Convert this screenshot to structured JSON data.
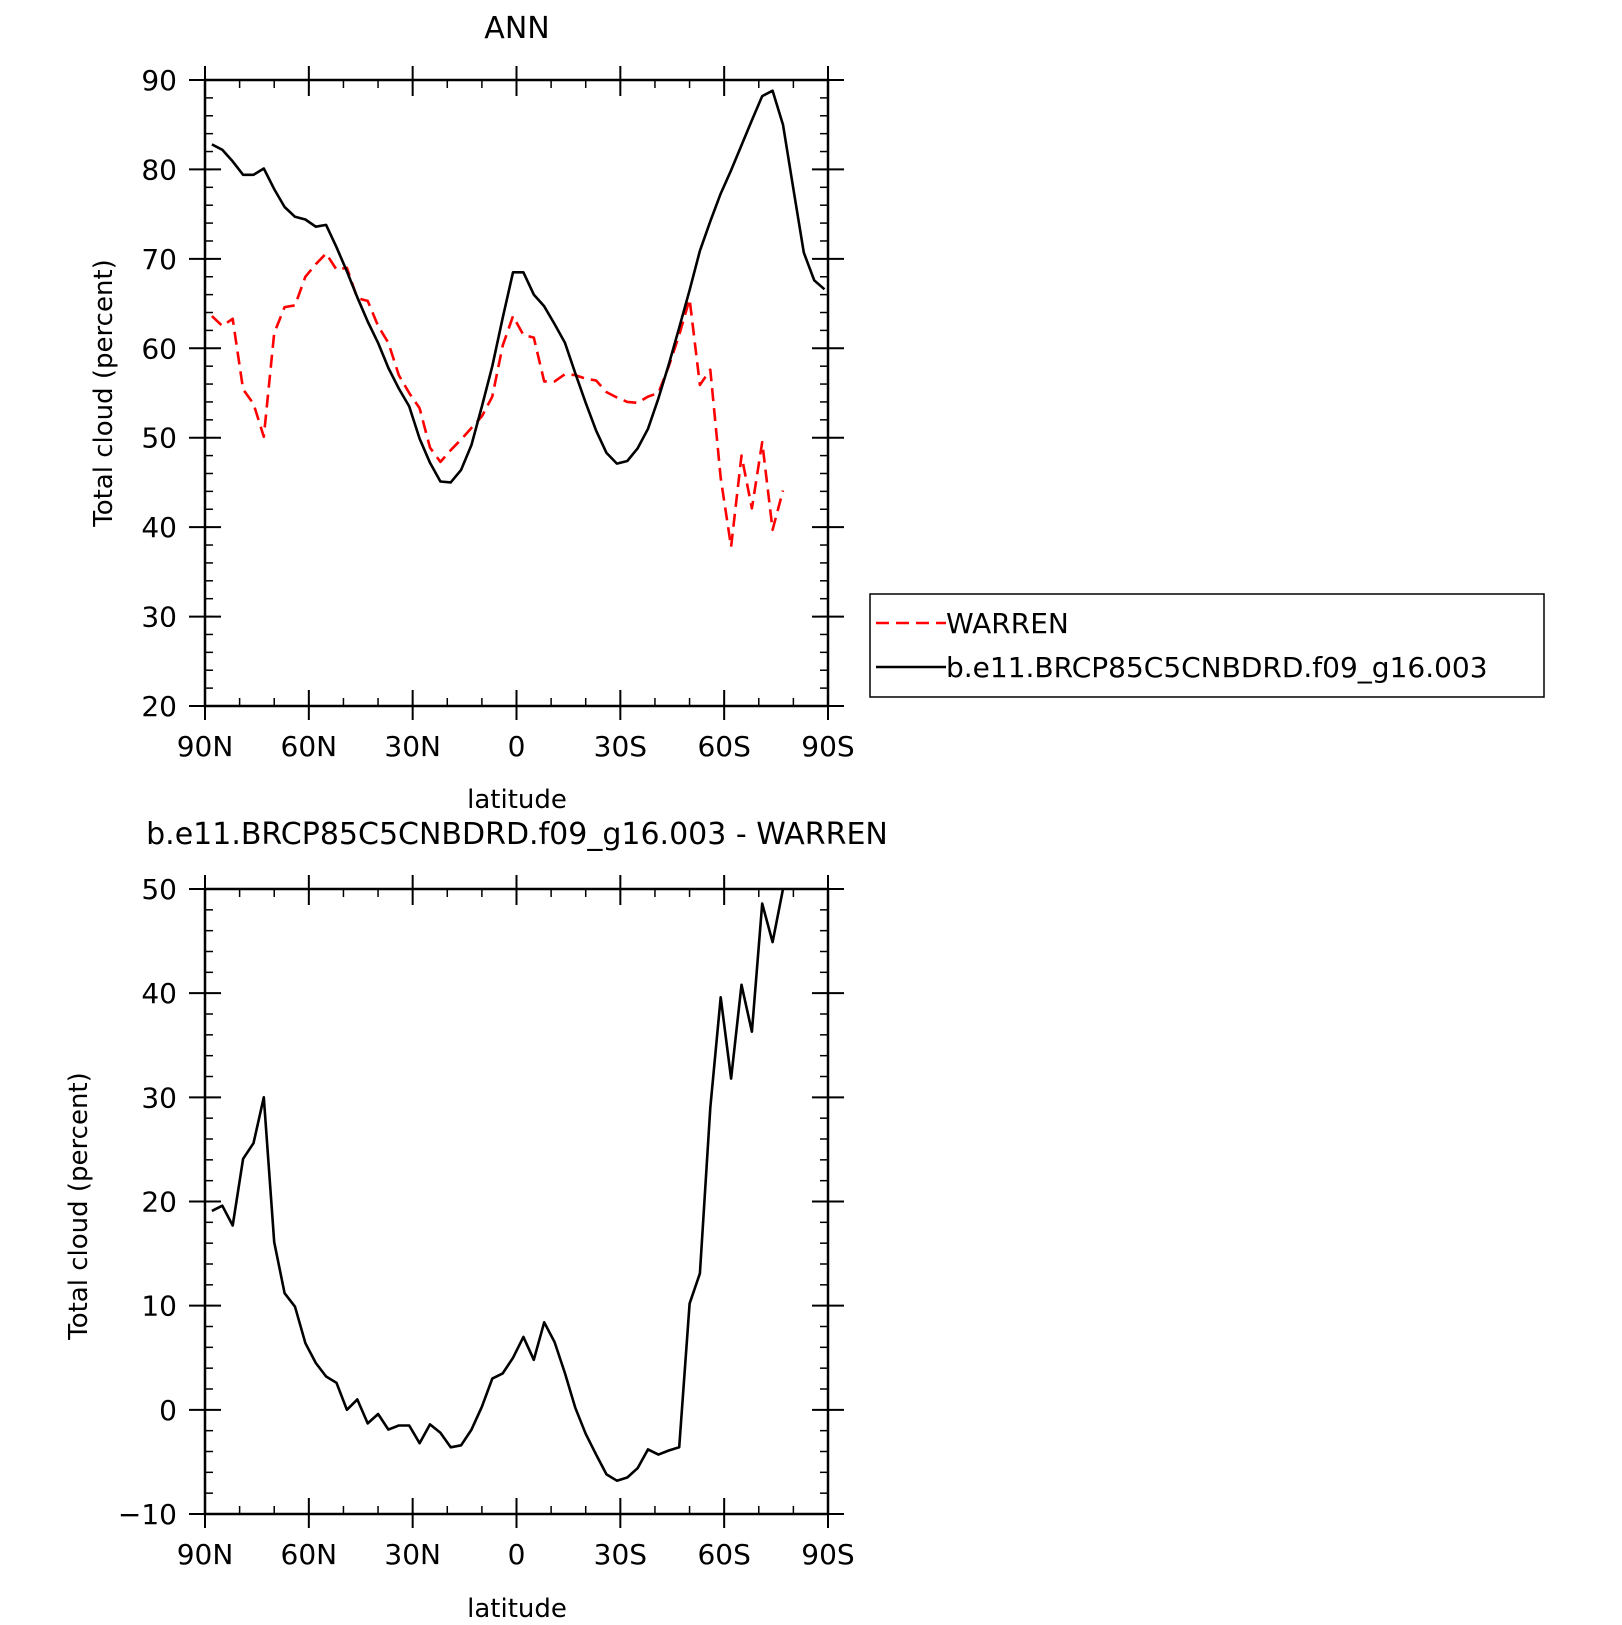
{
  "chart_data": [
    {
      "type": "line",
      "title": "ANN",
      "xlabel": "latitude",
      "ylabel": "Total cloud (percent)",
      "xlim": [
        90,
        -90
      ],
      "ylim": [
        20,
        90
      ],
      "xticks": [
        90,
        60,
        30,
        0,
        -30,
        -60,
        -90
      ],
      "xtick_labels": [
        "90N",
        "60N",
        "30N",
        "0",
        "30S",
        "60S",
        "90S"
      ],
      "yticks": [
        20,
        30,
        40,
        50,
        60,
        70,
        80,
        90
      ],
      "grid": false,
      "legend_position": "right",
      "series": [
        {
          "name": "WARREN",
          "color": "#ff0000",
          "dash": "dashed",
          "x": [
            88,
            85,
            82,
            79,
            76,
            73,
            70,
            67,
            64,
            61,
            58,
            55,
            52,
            49,
            46,
            43,
            40,
            37,
            34,
            31,
            28,
            25,
            22,
            19,
            16,
            13,
            10,
            7,
            4,
            1,
            -2,
            -5,
            -8,
            -11,
            -14,
            -17,
            -20,
            -23,
            -26,
            -29,
            -32,
            -35,
            -38,
            -41,
            -44,
            -47,
            -50,
            -53,
            -56,
            -59,
            -62,
            -65,
            -68,
            -71,
            -74,
            -77
          ],
          "y": [
            63.6,
            62.5,
            63.3,
            55.4,
            53.8,
            50.1,
            61.7,
            64.6,
            64.8,
            68.0,
            69.4,
            70.6,
            68.8,
            69.0,
            65.6,
            65.3,
            62.5,
            60.6,
            57.0,
            55.0,
            53.3,
            48.9,
            47.3,
            48.6,
            49.8,
            51.1,
            52.4,
            54.6,
            60.3,
            63.6,
            61.5,
            61.2,
            56.3,
            56.3,
            57.1,
            57.0,
            56.6,
            56.4,
            55.1,
            54.5,
            54.0,
            53.9,
            54.6,
            55.0,
            58.0,
            61.5,
            65.5,
            55.9,
            57.6,
            45.5,
            37.8,
            48.0,
            42.1,
            49.5,
            39.7,
            44.1
          ]
        },
        {
          "name": "b.e11.BRCP85C5CNBDRD.f09_g16.003",
          "color": "#000000",
          "dash": "solid",
          "x": [
            88,
            85,
            82,
            79,
            76,
            73,
            70,
            67,
            64,
            61,
            58,
            55,
            52,
            49,
            46,
            43,
            40,
            37,
            34,
            31,
            28,
            25,
            22,
            19,
            16,
            13,
            10,
            7,
            4,
            1,
            -2,
            -5,
            -8,
            -11,
            -14,
            -17,
            -20,
            -23,
            -26,
            -29,
            -32,
            -35,
            -38,
            -41,
            -44,
            -47,
            -50,
            -53,
            -56,
            -59,
            -62,
            -65,
            -68,
            -71,
            -74,
            -77,
            -80,
            -83,
            -86,
            -89
          ],
          "y": [
            82.8,
            82.2,
            80.9,
            79.4,
            79.4,
            80.1,
            77.8,
            75.8,
            74.7,
            74.4,
            73.6,
            73.8,
            71.3,
            68.6,
            65.7,
            63.0,
            60.6,
            57.8,
            55.5,
            53.5,
            49.9,
            47.2,
            45.1,
            45.0,
            46.4,
            49.2,
            53.5,
            58.0,
            63.4,
            68.5,
            68.5,
            66.0,
            64.7,
            62.7,
            60.6,
            57.2,
            53.9,
            50.8,
            48.3,
            47.1,
            47.4,
            48.8,
            51.0,
            54.4,
            58.2,
            62.3,
            66.5,
            70.9,
            74.2,
            77.3,
            79.9,
            82.7,
            85.5,
            88.2,
            88.8,
            85.0,
            77.8,
            70.7,
            67.6,
            66.6
          ]
        }
      ]
    },
    {
      "type": "line",
      "title": "b.e11.BRCP85C5CNBDRD.f09_g16.003 - WARREN",
      "xlabel": "latitude",
      "ylabel": "Total cloud (percent)",
      "xlim": [
        90,
        -90
      ],
      "ylim": [
        -10,
        50
      ],
      "xticks": [
        90,
        60,
        30,
        0,
        -30,
        -60,
        -90
      ],
      "xtick_labels": [
        "90N",
        "60N",
        "30N",
        "0",
        "30S",
        "60S",
        "90S"
      ],
      "yticks": [
        -10,
        0,
        10,
        20,
        30,
        40,
        50
      ],
      "ytick_labels": [
        "−10",
        "0",
        "10",
        "20",
        "30",
        "40",
        "50"
      ],
      "grid": false,
      "series": [
        {
          "color": "#000000",
          "dash": "solid",
          "x": [
            88,
            85,
            82,
            79,
            76,
            73,
            70,
            67,
            64,
            61,
            58,
            55,
            52,
            49,
            46,
            43,
            40,
            37,
            34,
            31,
            28,
            25,
            22,
            19,
            16,
            13,
            10,
            7,
            4,
            1,
            -2,
            -5,
            -8,
            -11,
            -14,
            -17,
            -20,
            -23,
            -26,
            -29,
            -32,
            -35,
            -38,
            -41,
            -44,
            -47,
            -50,
            -53,
            -56,
            -59,
            -62,
            -65,
            -68,
            -71,
            -74,
            -77
          ],
          "y": [
            19.1,
            19.6,
            17.7,
            24.1,
            25.6,
            30.0,
            16.1,
            11.2,
            9.9,
            6.4,
            4.5,
            3.2,
            2.6,
            0.0,
            1.0,
            -1.3,
            -0.4,
            -1.9,
            -1.5,
            -1.5,
            -3.2,
            -1.4,
            -2.2,
            -3.6,
            -3.4,
            -1.9,
            0.3,
            3.0,
            3.5,
            5.0,
            7.0,
            4.8,
            8.4,
            6.5,
            3.5,
            0.2,
            -2.3,
            -4.3,
            -6.2,
            -6.8,
            -6.5,
            -5.6,
            -3.8,
            -4.3,
            -3.9,
            -3.6,
            10.2,
            13.1,
            29.0,
            39.6,
            31.8,
            40.8,
            36.3,
            48.6,
            44.9,
            50.0
          ]
        }
      ]
    }
  ]
}
